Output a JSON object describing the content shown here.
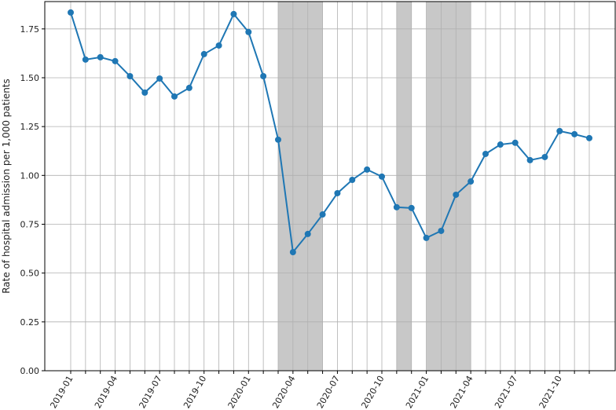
{
  "chart_data": {
    "type": "line",
    "y_label": "Rate of hospital admission per 1,000 patients",
    "categories": [
      "2019-01",
      null,
      null,
      "2019-04",
      null,
      null,
      "2019-07",
      null,
      null,
      "2019-10",
      null,
      null,
      "2020-01",
      null,
      null,
      "2020-04",
      null,
      null,
      "2020-07",
      null,
      null,
      "2020-10",
      null,
      null,
      "2021-01",
      null,
      null,
      "2021-04",
      null,
      null,
      "2021-07",
      null,
      null,
      "2021-10",
      null,
      null
    ],
    "series": [
      {
        "color": "#1f77b4",
        "values": [
          1.834,
          1.593,
          1.605,
          1.585,
          1.508,
          1.424,
          1.496,
          1.404,
          1.448,
          1.621,
          1.665,
          1.826,
          1.734,
          1.508,
          1.183,
          0.607,
          0.7,
          0.8,
          0.909,
          0.977,
          1.03,
          0.994,
          0.837,
          0.833,
          0.68,
          0.716,
          0.901,
          0.969,
          1.11,
          1.158,
          1.167,
          1.078,
          1.094,
          1.227,
          1.211,
          1.191
        ]
      }
    ],
    "shaded_spans": [
      [
        14,
        17
      ],
      [
        22,
        23
      ],
      [
        24,
        27
      ]
    ],
    "shade_color": "#c8c8c8",
    "ylim": [
      0,
      1.89
    ],
    "yticks": [
      {
        "value": 0,
        "label": "0.00"
      },
      {
        "value": 0.25,
        "label": "0.25"
      },
      {
        "value": 0.5,
        "label": "0.50"
      },
      {
        "value": 0.75,
        "label": "0.75"
      },
      {
        "value": 1,
        "label": "1.00"
      },
      {
        "value": 1.25,
        "label": "1.25"
      },
      {
        "value": 1.5,
        "label": "1.50"
      },
      {
        "value": 1.75,
        "label": "1.75"
      }
    ],
    "grid": true
  }
}
